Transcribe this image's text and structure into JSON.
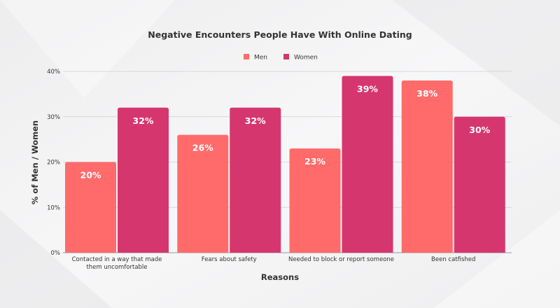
{
  "chart_data": {
    "type": "bar",
    "title": "Negative Encounters People Have With Online Dating",
    "xlabel": "Reasons",
    "ylabel": "% of Men / Women",
    "ylim": [
      0,
      40
    ],
    "yticks": [
      "0%",
      "10%",
      "20%",
      "30%",
      "40%"
    ],
    "ytick_values": [
      0,
      10,
      20,
      30,
      40
    ],
    "grid": true,
    "legend_position": "top-center",
    "categories": [
      [
        "Contacted in a way that made",
        "them uncomfortable"
      ],
      [
        "Fears about safety"
      ],
      [
        "Needed to block or report someone"
      ],
      [
        "Been catfished"
      ]
    ],
    "series": [
      {
        "name": "Men",
        "color": "#ff6b6b",
        "values": [
          20,
          26,
          23,
          38
        ],
        "labels": [
          "20%",
          "26%",
          "23%",
          "38%"
        ]
      },
      {
        "name": "Women",
        "color": "#d6366e",
        "values": [
          32,
          32,
          39,
          30
        ],
        "labels": [
          "32%",
          "32%",
          "39%",
          "30%"
        ]
      }
    ]
  }
}
